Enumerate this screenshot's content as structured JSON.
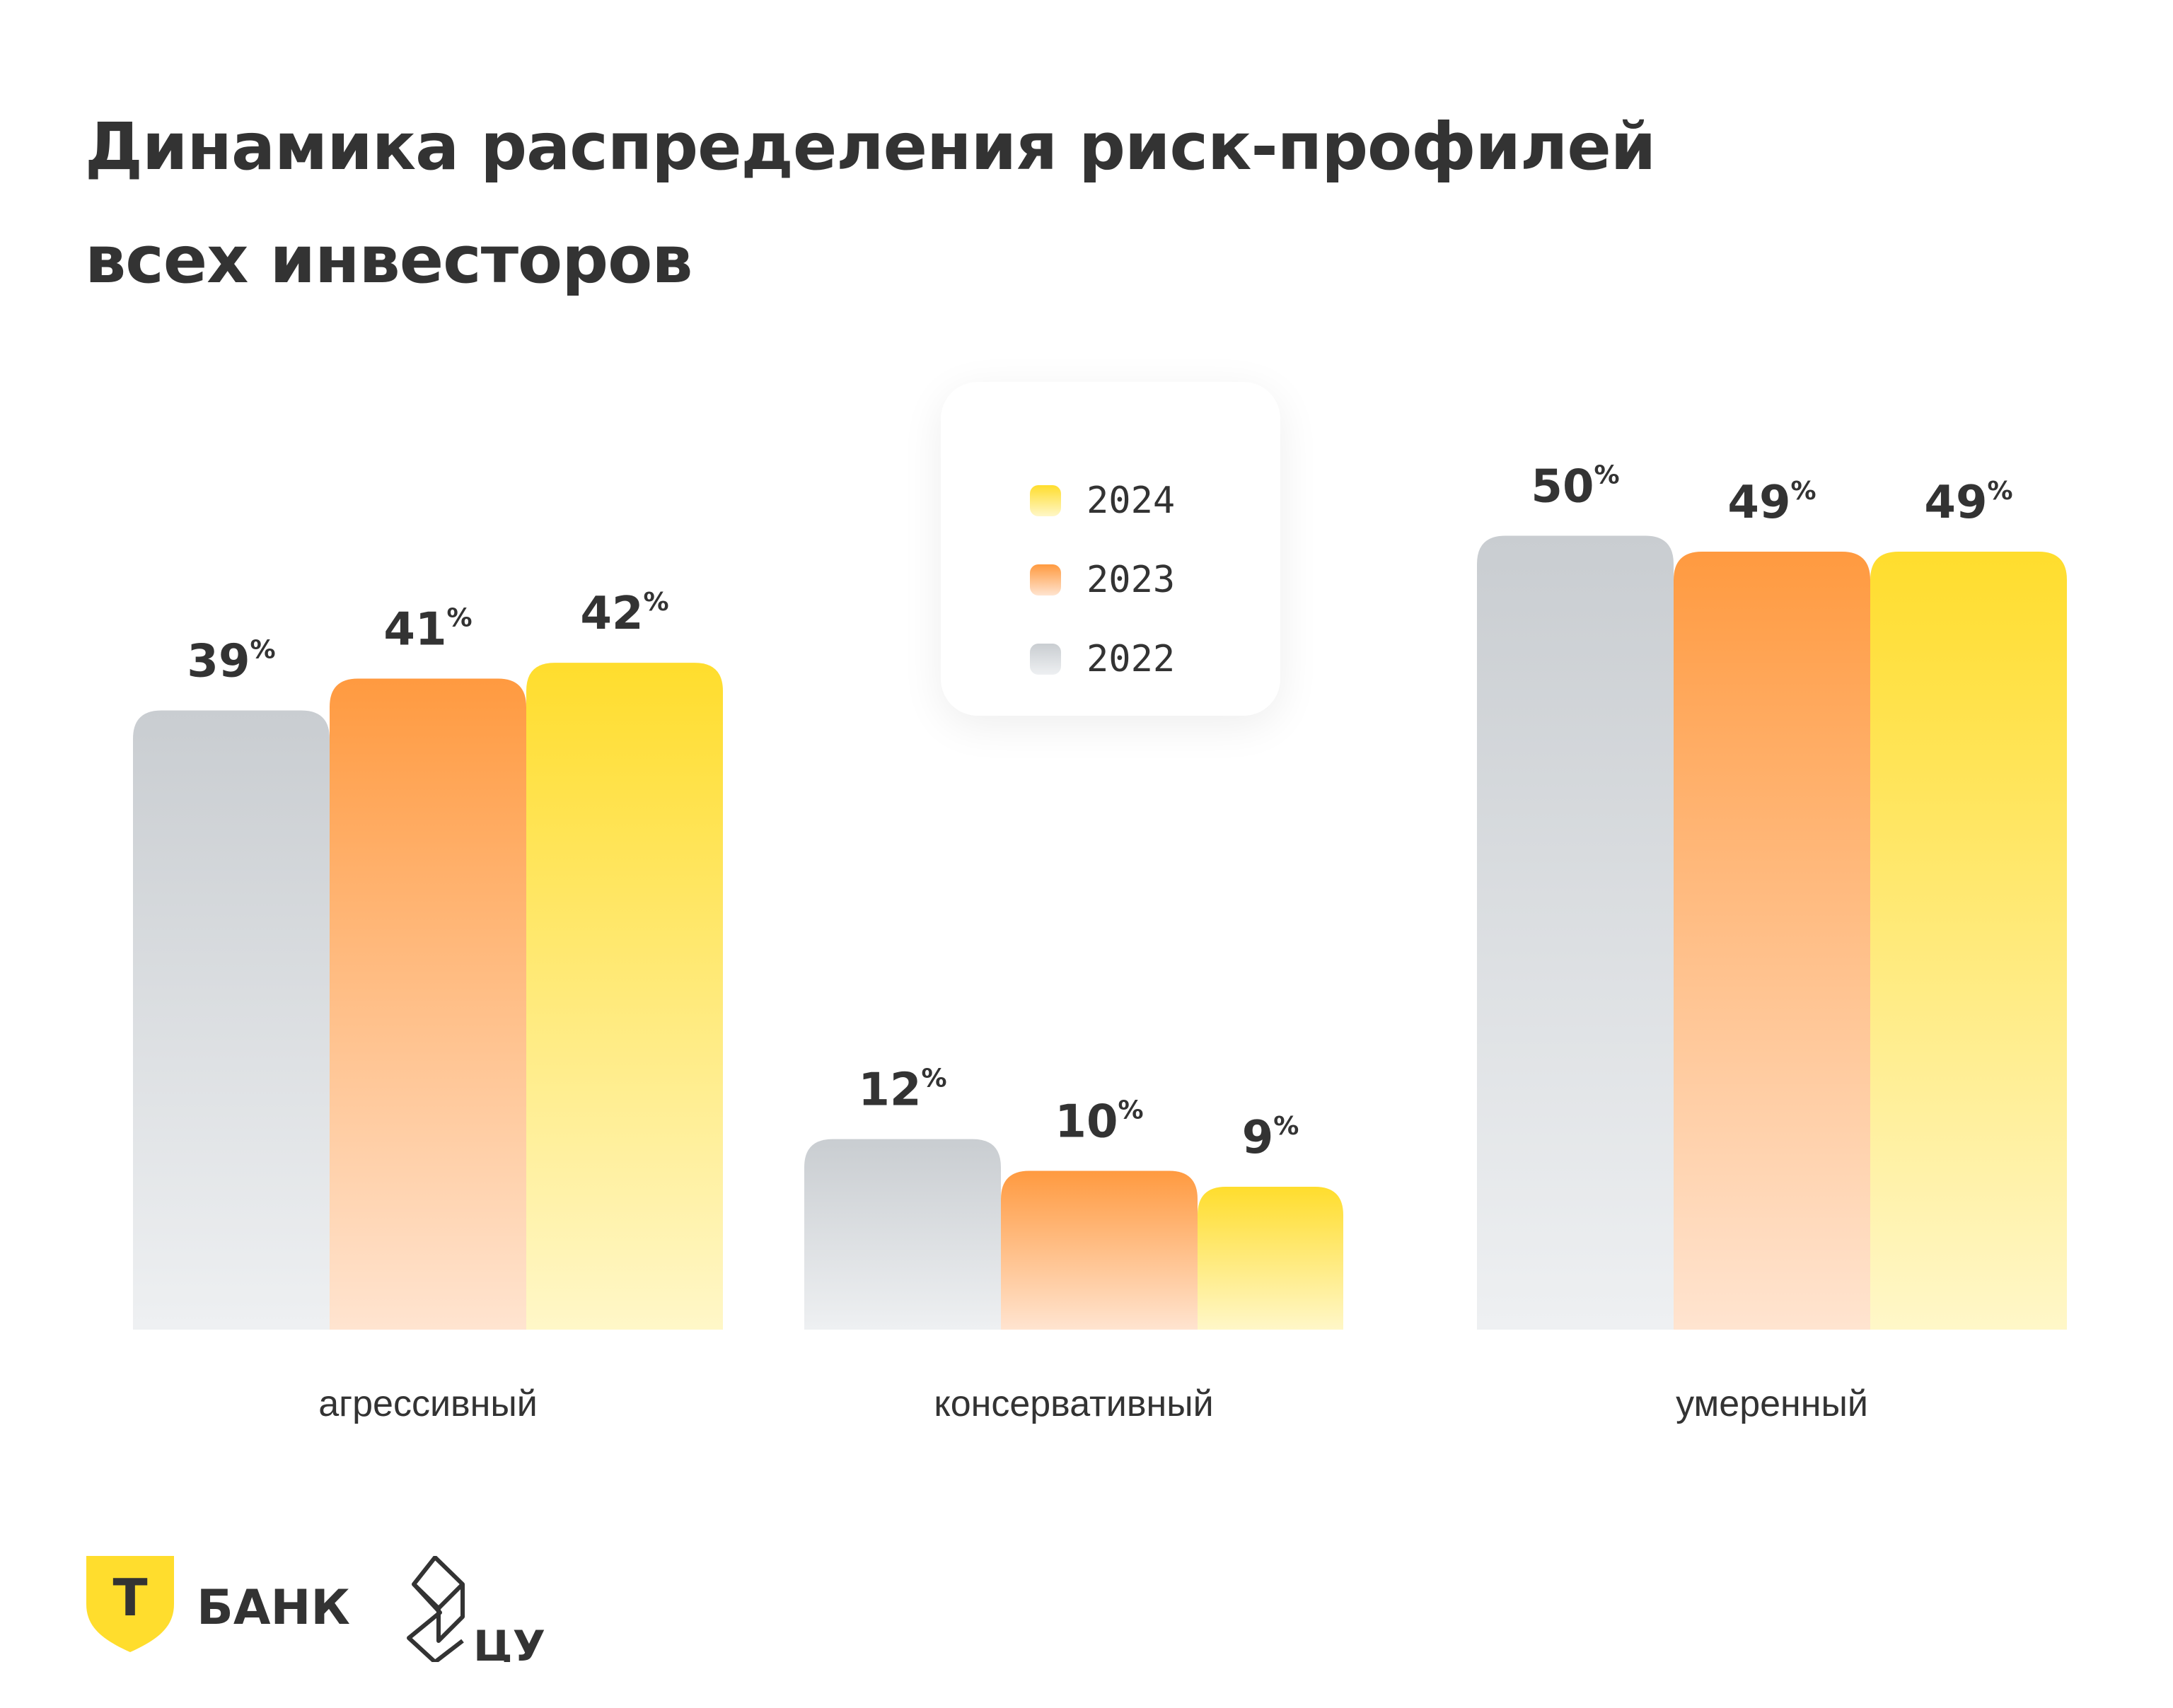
{
  "title_lines": [
    "Динамика распределения риск-профилей",
    "всех инвесторов"
  ],
  "legend": [
    {
      "label": "2024",
      "color_top": "#FFDD2D",
      "color_bottom": "#FFF7C8"
    },
    {
      "label": "2023",
      "color_top": "#FF9A40",
      "color_bottom": "#FFE4D0"
    },
    {
      "label": "2022",
      "color_top": "#C9CDD1",
      "color_bottom": "#EEF0F2"
    }
  ],
  "chart_data": {
    "type": "bar",
    "title": "Динамика распределения риск-профилей всех инвесторов",
    "categories": [
      "агрессивный",
      "консервативный",
      "умеренный"
    ],
    "series": [
      {
        "name": "2022",
        "values": [
          39,
          12,
          50
        ],
        "color": "#C9CDD1"
      },
      {
        "name": "2023",
        "values": [
          41,
          10,
          49
        ],
        "color": "#FF9A40"
      },
      {
        "name": "2024",
        "values": [
          42,
          9,
          49
        ],
        "color": "#FFDD2D"
      }
    ],
    "value_suffix": "%",
    "xlabel": "",
    "ylabel": "",
    "ylim": [
      0,
      52
    ],
    "grid": false,
    "legend_position": "top-center"
  },
  "footer": {
    "bank_logo_letter": "Т",
    "bank_name": "БАНК",
    "partner_name": "ЦУ"
  },
  "colors": {
    "text": "#333333",
    "accent": "#FFDD2D",
    "orange": "#FF9A40",
    "gray": "#C9CDD1"
  }
}
